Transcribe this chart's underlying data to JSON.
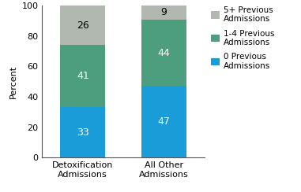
{
  "categories": [
    "Detoxification\nAdmissions",
    "All Other\nAdmissions"
  ],
  "segments": {
    "0 Previous\nAdmissions": [
      33,
      47
    ],
    "1-4 Previous\nAdmissions": [
      41,
      44
    ],
    "5+ Previous\nAdmissions": [
      26,
      9
    ]
  },
  "colors": {
    "0 Previous\nAdmissions": "#1a9cd8",
    "1-4 Previous\nAdmissions": "#4d9e7e",
    "5+ Previous\nAdmissions": "#b0b8b0"
  },
  "label_text_colors": {
    "0 Previous\nAdmissions": "white",
    "1-4 Previous\nAdmissions": "white",
    "5+ Previous\nAdmissions": "black"
  },
  "ylabel": "Percent",
  "ylim": [
    0,
    100
  ],
  "yticks": [
    0,
    20,
    40,
    60,
    80,
    100
  ],
  "legend_labels": [
    "5+ Previous\nAdmissions",
    "1-4 Previous\nAdmissions",
    "0 Previous\nAdmissions"
  ],
  "bar_width": 0.55,
  "bar_positions": [
    0,
    1
  ],
  "figsize": [
    3.81,
    2.44
  ],
  "dpi": 100
}
